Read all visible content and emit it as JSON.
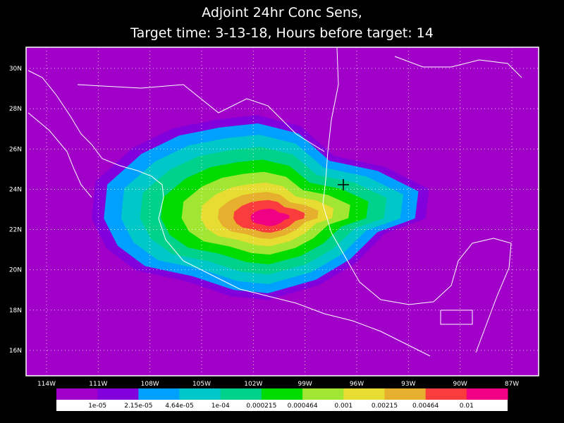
{
  "title": [
    "Adjoint 24hr Conc Sens,",
    "Target time: 3-13-18, Hours before target: 14"
  ],
  "lat_labels": [
    "30N",
    "28N",
    "26N",
    "24N",
    "22N",
    "20N",
    "18N",
    "16N"
  ],
  "lon_labels": [
    "114W",
    "111W",
    "108W",
    "105W",
    "102W",
    "99W",
    "96W",
    "93W",
    "90W",
    "87W"
  ],
  "colorbar": {
    "colors": [
      "#a000c8",
      "#8200dc",
      "#00a0ff",
      "#00c8c8",
      "#00d28c",
      "#00dc00",
      "#a0e632",
      "#e6dc32",
      "#e6af2d",
      "#fa3c3c",
      "#f00082"
    ],
    "labels": [
      "1e-05",
      "2.15e-05",
      "4.64e-05",
      "1e-04",
      "0.000215",
      "0.000464",
      "0.001",
      "0.00215",
      "0.00464",
      "0.01"
    ]
  }
}
